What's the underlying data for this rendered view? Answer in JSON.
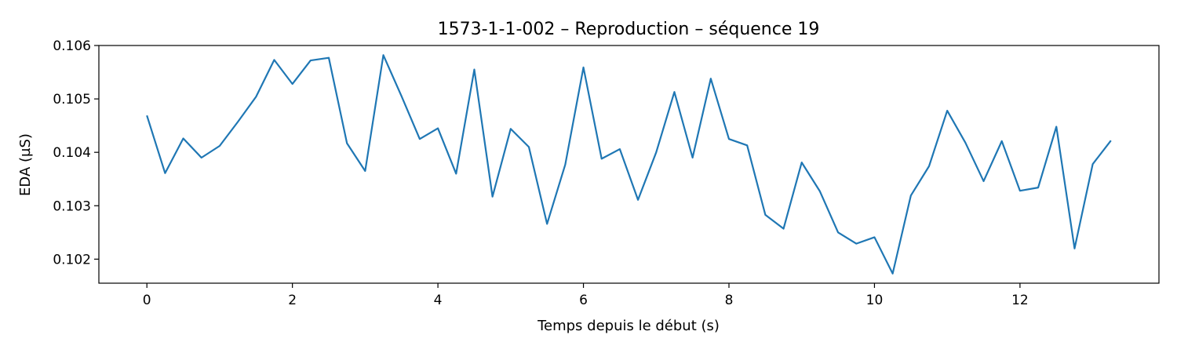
{
  "chart_data": {
    "type": "line",
    "title": "1573-1-1-002 – Reproduction – séquence 19",
    "xlabel": "Temps depuis le début (s)",
    "ylabel": "EDA (µS)",
    "xlim": [
      -0.66,
      13.91
    ],
    "ylim": [
      0.10155,
      0.106
    ],
    "xticks": [
      0,
      2,
      4,
      6,
      8,
      10,
      12
    ],
    "xtick_labels": [
      "0",
      "2",
      "4",
      "6",
      "8",
      "10",
      "12"
    ],
    "yticks": [
      0.102,
      0.103,
      0.104,
      0.105,
      0.106
    ],
    "ytick_labels": [
      "0.102",
      "0.103",
      "0.104",
      "0.105",
      "0.106"
    ],
    "grid": false,
    "series": [
      {
        "color": "#1f77b4",
        "x": [
          0,
          0.25,
          0.5,
          0.75,
          1,
          1.25,
          1.5,
          1.75,
          2,
          2.25,
          2.5,
          2.75,
          3,
          3.25,
          3.5,
          3.75,
          4,
          4.25,
          4.5,
          4.75,
          5,
          5.25,
          5.5,
          5.75,
          6,
          6.25,
          6.5,
          6.75,
          7,
          7.25,
          7.5,
          7.75,
          8,
          8.25,
          8.5,
          8.75,
          9,
          9.25,
          9.5,
          9.75,
          10,
          10.25,
          10.5,
          10.75,
          11,
          11.25,
          11.5,
          11.75,
          12,
          12.25,
          12.5,
          12.75,
          13,
          13.25
        ],
        "y": [
          0.10469,
          0.10361,
          0.10426,
          0.1039,
          0.10412,
          0.10457,
          0.10504,
          0.10573,
          0.10528,
          0.10572,
          0.10577,
          0.10417,
          0.10365,
          0.10582,
          0.10505,
          0.10425,
          0.10445,
          0.1036,
          0.10555,
          0.10317,
          0.10444,
          0.1041,
          0.10266,
          0.10377,
          0.10559,
          0.10388,
          0.10406,
          0.10311,
          0.104,
          0.10513,
          0.1039,
          0.10538,
          0.10425,
          0.10413,
          0.10283,
          0.10257,
          0.10381,
          0.10327,
          0.1025,
          0.10229,
          0.10241,
          0.10173,
          0.10319,
          0.10374,
          0.10478,
          0.10418,
          0.10346,
          0.10421,
          0.10328,
          0.10334,
          0.10448,
          0.1022,
          0.10378,
          0.10422
        ]
      }
    ]
  }
}
